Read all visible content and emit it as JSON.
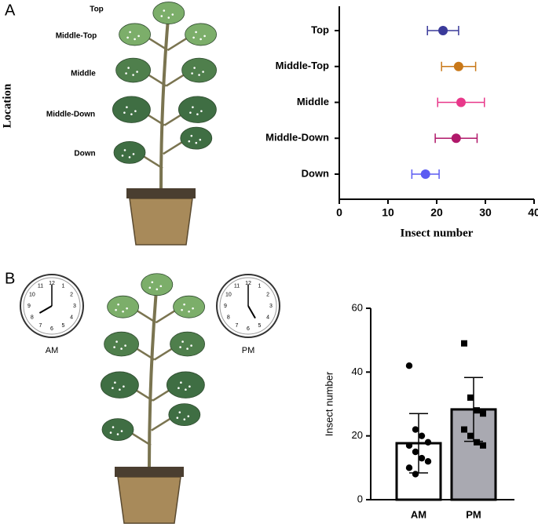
{
  "chart_data": [
    {
      "type": "dot",
      "panel_label": "A",
      "xlabel": "Insect number",
      "ylabel": "Location",
      "categories": [
        "Top",
        "Middle-Top",
        "Middle",
        "Middle-Down",
        "Down"
      ],
      "values": [
        21.3,
        24.5,
        25,
        24,
        17.7
      ],
      "errors": [
        3.2,
        3.5,
        4.8,
        4.3,
        2.8
      ],
      "colors": [
        "#3a3a9a",
        "#c97818",
        "#e8388a",
        "#b0186a",
        "#5c5cf2"
      ],
      "xlim": [
        0,
        40
      ],
      "xticks": [
        0,
        10,
        20,
        30,
        40
      ]
    },
    {
      "type": "bar",
      "panel_label": "B",
      "ylabel": "Insect number",
      "categories": [
        "AM",
        "PM"
      ],
      "values": [
        17.7,
        28.3
      ],
      "errors": [
        9.3,
        10
      ],
      "colors": [
        "#ffffff",
        "#a9a9b1"
      ],
      "points": [
        [
          42,
          22,
          20,
          18,
          17,
          15,
          13,
          12,
          10,
          8
        ],
        [
          49,
          32,
          28,
          27,
          22,
          20,
          18,
          17
        ]
      ],
      "ylim": [
        0,
        60
      ],
      "yticks": [
        0,
        20,
        40,
        60
      ]
    }
  ],
  "figure": {
    "clock_numerals": [
      "12",
      "1",
      "2",
      "3",
      "4",
      "5",
      "6",
      "7",
      "8",
      "9",
      "10",
      "11"
    ]
  }
}
